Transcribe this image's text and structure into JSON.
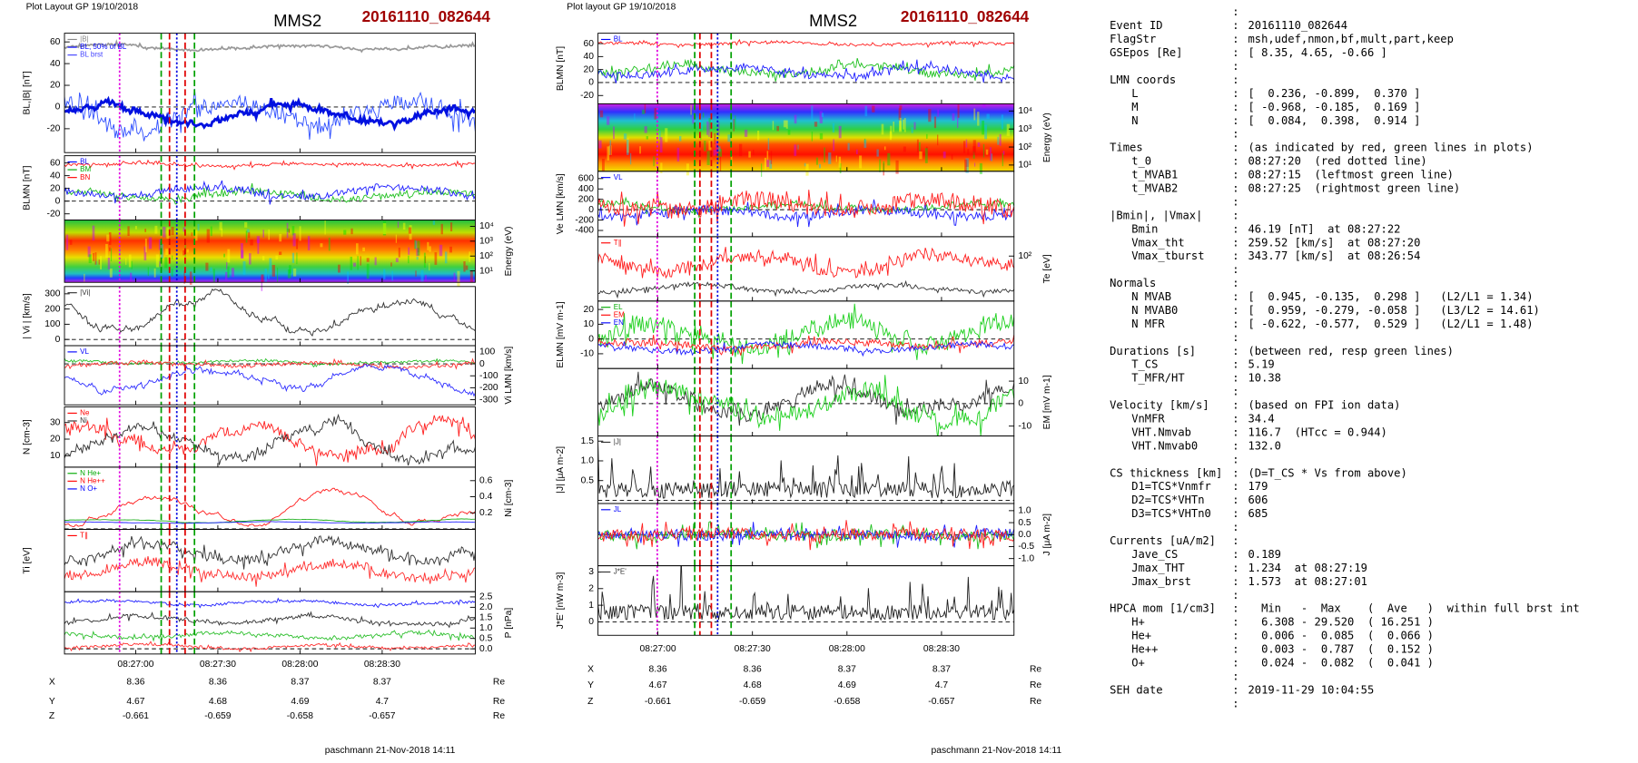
{
  "plots": [
    {
      "layout_note": "Plot Layout GP 19/10/2018",
      "spacecraft": "MMS2",
      "event": "20161110_082644",
      "xlim": [
        "08:26:34",
        "08:29:04"
      ],
      "xticks": [
        "08:27:00",
        "08:27:30",
        "08:28:00",
        "08:28:30"
      ],
      "panels": [
        {
          "ylabel": "BL,|B| [nT]",
          "axis": "left",
          "ylim": [
            -42,
            68
          ],
          "yticks": [
            60,
            40,
            20,
            0,
            -20
          ],
          "legend": [
            {
              "name": "|B|",
              "color": "#888888"
            },
            {
              "name": "BL, 50% of BL",
              "color": "#0000ff"
            },
            {
              "name": "BL brst",
              "color": "#4040ff"
            }
          ]
        },
        {
          "ylabel": "BLMN [nT]",
          "axis": "left",
          "ylim": [
            -29.8,
            71.4
          ],
          "yticks": [
            60,
            40,
            20,
            0,
            -20
          ],
          "legend": [
            {
              "name": "BL",
              "color": "#0000ff"
            },
            {
              "name": "BM",
              "color": "#00aa00"
            },
            {
              "name": "BN",
              "color": "#ff0000"
            }
          ]
        },
        {
          "ylabel": "Energy (eV)",
          "axis": "right",
          "log": true,
          "ylim": [
            1.7,
            26300
          ],
          "yticks": [
            {
              "value": 10000,
              "label": "10⁴"
            },
            {
              "value": 1000,
              "label": "10³"
            },
            {
              "value": 100,
              "label": "10²"
            },
            {
              "value": 10,
              "label": "10¹"
            }
          ]
        },
        {
          "ylabel": "| Vi | [km/s]",
          "axis": "left",
          "ylim": [
            -41,
            348
          ],
          "yticks": [
            300,
            200,
            100,
            0
          ],
          "legend": [
            {
              "name": "|Vi|",
              "color": "#333333"
            }
          ]
        },
        {
          "ylabel": "Vi LMN [km/s]",
          "axis": "right",
          "ylim": [
            -343,
            152
          ],
          "yticks": [
            100,
            0,
            -100,
            -200,
            -300
          ],
          "legend": [
            {
              "name": "VL",
              "color": "#0000ff"
            }
          ]
        },
        {
          "ylabel": "N [cm-3]",
          "axis": "left",
          "ylim": [
            3.1,
            39.4
          ],
          "yticks": [
            30,
            20,
            10
          ],
          "legend": [
            {
              "name": "Ne",
              "color": "#ff0000"
            },
            {
              "name": "Ni",
              "color": "#333333"
            }
          ]
        },
        {
          "ylabel": "Ni [cm-3]",
          "axis": "right",
          "ylim": [
            -0.006,
            0.768
          ],
          "yticks": [
            0.6,
            0.4,
            0.2
          ],
          "legend": [
            {
              "name": "N He+",
              "color": "#00aa00"
            },
            {
              "name": "N He++",
              "color": "#ff0000"
            },
            {
              "name": "N O+",
              "color": "#0000ff"
            }
          ]
        },
        {
          "ylabel": "Ti [eV]",
          "axis": "left",
          "yticks": [],
          "legend": [
            {
              "name": "T∥",
              "color": "#ff0000"
            }
          ]
        },
        {
          "ylabel": "P [nPa]",
          "axis": "right",
          "ylim": [
            -0.25,
            2.75
          ],
          "yticks": [
            2.5,
            {
              "value": 2,
              "label": "2.0"
            },
            1.5,
            {
              "value": 1,
              "label": "1.0"
            },
            0.5,
            {
              "value": 0,
              "label": "0.0"
            }
          ]
        }
      ],
      "position": [
        {
          "label": "X",
          "values": [
            8.36,
            8.36,
            8.37,
            8.37
          ],
          "unit": "Re"
        },
        {
          "label": "Y",
          "values": [
            4.67,
            4.68,
            4.69,
            4.7
          ],
          "unit": "Re"
        },
        {
          "label": "Z",
          "values": [
            -0.661,
            -0.659,
            -0.658,
            -0.657
          ],
          "unit": "Re"
        }
      ],
      "footer": "paschmann 21-Nov-2018 14:11"
    },
    {
      "layout_note": "Plot layout GP 19/10/2018",
      "spacecraft": "MMS2",
      "event": "20161110_082644",
      "xlim": [
        "08:26:41",
        "08:28:53"
      ],
      "xticks": [
        "08:27:00",
        "08:27:30",
        "08:28:00",
        "08:28:30"
      ],
      "panels": [
        {
          "ylabel": "BLMN [nT]",
          "axis": "left",
          "ylim": [
            -32.8,
            76
          ],
          "yticks": [
            60,
            40,
            20,
            0,
            -20
          ],
          "legend": [
            {
              "name": "BL",
              "color": "#0000ff"
            }
          ]
        },
        {
          "ylabel": "Energy (eV)",
          "axis": "right",
          "log": true,
          "ylim": [
            4.5,
            25000
          ],
          "yticks": [
            {
              "value": 10000,
              "label": "10⁴"
            },
            {
              "value": 1000,
              "label": "10³"
            },
            {
              "value": 100,
              "label": "10²"
            },
            {
              "value": 10,
              "label": "10¹"
            }
          ]
        },
        {
          "ylabel": "Ve LMN [km/s]",
          "axis": "left",
          "ylim": [
            -520,
            740
          ],
          "yticks": [
            600,
            400,
            200,
            0,
            -200,
            -400
          ],
          "legend": [
            {
              "name": "VL",
              "color": "#0000ff"
            }
          ]
        },
        {
          "ylabel": "Te [eV]",
          "axis": "right",
          "log": true,
          "ylim": [
            20,
            200
          ],
          "yticks": [
            {
              "value": 100,
              "label": "10²"
            }
          ],
          "legend": [
            {
              "name": "T∥",
              "color": "#ff0000"
            }
          ]
        },
        {
          "ylabel": "ELMN [mV m-1]",
          "axis": "left",
          "ylim": [
            -20,
            25.7
          ],
          "yticks": [
            20,
            10,
            0,
            -10
          ],
          "legend": [
            {
              "name": "EL",
              "color": "#00aa00"
            },
            {
              "name": "EM",
              "color": "#ff0000"
            },
            {
              "name": "EN",
              "color": "#0000ff"
            }
          ]
        },
        {
          "ylabel": "EM [mV m-1]",
          "axis": "right",
          "ylim": [
            -14.4,
            15.6
          ],
          "yticks": [
            10,
            0,
            -10
          ]
        },
        {
          "ylabel": "|J| [μA m-2]",
          "axis": "left",
          "ylim": [
            -0.08,
            1.63
          ],
          "yticks": [
            1.5,
            {
              "value": 1,
              "label": "1.0"
            },
            0.5
          ],
          "legend": [
            {
              "name": "|J|",
              "color": "#333333"
            }
          ]
        },
        {
          "ylabel": "J [μA m-2]",
          "axis": "right",
          "ylim": [
            -1.3,
            1.3
          ],
          "yticks": [
            {
              "value": 1,
              "label": "1.0"
            },
            0.5,
            {
              "value": 0,
              "label": "0.0"
            },
            -0.5,
            {
              "value": -1,
              "label": "-1.0"
            }
          ],
          "legend": [
            {
              "name": "JL",
              "color": "#0000ff"
            }
          ]
        },
        {
          "ylabel": "J*E' [nW m-3]",
          "axis": "left",
          "ylim": [
            -0.81,
            3.375
          ],
          "yticks": [
            3,
            2,
            1,
            0
          ],
          "legend": [
            {
              "name": "J*E'",
              "color": "#333333"
            }
          ]
        }
      ],
      "position": [
        {
          "label": "X",
          "values": [
            8.36,
            8.36,
            8.37,
            8.37
          ],
          "unit": "Re"
        },
        {
          "label": "Y",
          "values": [
            4.67,
            4.68,
            4.69,
            4.7
          ],
          "unit": "Re"
        },
        {
          "label": "Z",
          "values": [
            -0.661,
            -0.659,
            -0.658,
            -0.657
          ],
          "unit": "Re"
        }
      ],
      "footer": "paschmann 21-Nov-2018 14:11"
    }
  ],
  "info": {
    "header": [
      {
        "key": "Event ID",
        "value": "20161110_082644"
      },
      {
        "key": "FlagStr",
        "value": "msh,udef,nmon,bf,mult,part,keep"
      },
      {
        "key": "GSEpos [Re]",
        "value": "[ 8.35, 4.65, -0.66 ]"
      }
    ],
    "sections": [
      {
        "title": "LMN coords",
        "items": [
          {
            "key": "L",
            "value": "[  0.236, -0.899,  0.370 ]"
          },
          {
            "key": "M",
            "value": "[ -0.968, -0.185,  0.169 ]"
          },
          {
            "key": "N",
            "value": "[  0.084,  0.398,  0.914 ]"
          }
        ]
      },
      {
        "title": "Times",
        "note": "(as indicated by red, green lines in plots)",
        "items": [
          {
            "key": "t_0",
            "value": "08:27:20  (red dotted line)"
          },
          {
            "key": "t_MVAB1",
            "value": "08:27:15  (leftmost green line)"
          },
          {
            "key": "t_MVAB2",
            "value": "08:27:25  (rightmost green line)"
          }
        ]
      },
      {
        "title": "|Bmin|, |Vmax|",
        "items": [
          {
            "key": "Bmin",
            "value": "46.19 [nT]  at 08:27:22"
          },
          {
            "key": "Vmax_tht",
            "value": "259.52 [km/s]  at 08:27:20"
          },
          {
            "key": "Vmax_tburst",
            "value": "343.77 [km/s]  at 08:26:54"
          }
        ]
      },
      {
        "title": "Normals",
        "items": [
          {
            "key": "N MVAB",
            "value": "[  0.945, -0.135,  0.298 ]   (L2/L1 = 1.34)"
          },
          {
            "key": "N MVAB0",
            "value": "[  0.959, -0.279, -0.058 ]   (L3/L2 = 14.61)"
          },
          {
            "key": "N MFR",
            "value": "[ -0.622, -0.577,  0.529 ]   (L2/L1 = 1.48)"
          }
        ]
      },
      {
        "title": "Durations [s]",
        "note": "(between red, resp green lines)",
        "items": [
          {
            "key": "T_CS",
            "value": "5.19"
          },
          {
            "key": "T_MFR/HT",
            "value": "10.38"
          }
        ]
      },
      {
        "title": "Velocity [km/s]",
        "note": "(based on FPI ion data)",
        "items": [
          {
            "key": "VnMFR",
            "value": "34.4"
          },
          {
            "key": "VHT.Nmvab",
            "value": "116.7  (HTcc = 0.944)"
          },
          {
            "key": "VHT.Nmvab0",
            "value": "132.0"
          }
        ]
      },
      {
        "title": "CS thickness [km]",
        "note": "(D=T_CS * Vs from above)",
        "items": [
          {
            "key": "D1=TCS*Vnmfr",
            "value": "179"
          },
          {
            "key": "D2=TCS*VHTn",
            "value": "606"
          },
          {
            "key": "D3=TCS*VHTn0",
            "value": "685"
          }
        ]
      },
      {
        "title": "Currents [uA/m2]",
        "items": [
          {
            "key": "Jave_CS",
            "value": "0.189"
          },
          {
            "key": "Jmax_THT",
            "value": "1.234  at 08:27:19"
          },
          {
            "key": "Jmax_brst",
            "value": "1.573  at 08:27:01"
          }
        ]
      },
      {
        "title": "HPCA mom [1/cm3]",
        "note": "  Min   -  Max    (  Ave   )  within full brst int",
        "items": [
          {
            "key": "H+",
            "value": "  6.308 - 29.520  ( 16.251 )"
          },
          {
            "key": "He+",
            "value": "  0.006 -  0.085  (  0.066 )"
          },
          {
            "key": "He++",
            "value": "  0.003 -  0.787  (  0.152 )"
          },
          {
            "key": "O+",
            "value": "  0.024 -  0.082  (  0.041 )"
          }
        ]
      },
      {
        "title": "SEH date",
        "note": "2019-11-29 10:04:55",
        "items": []
      }
    ]
  }
}
